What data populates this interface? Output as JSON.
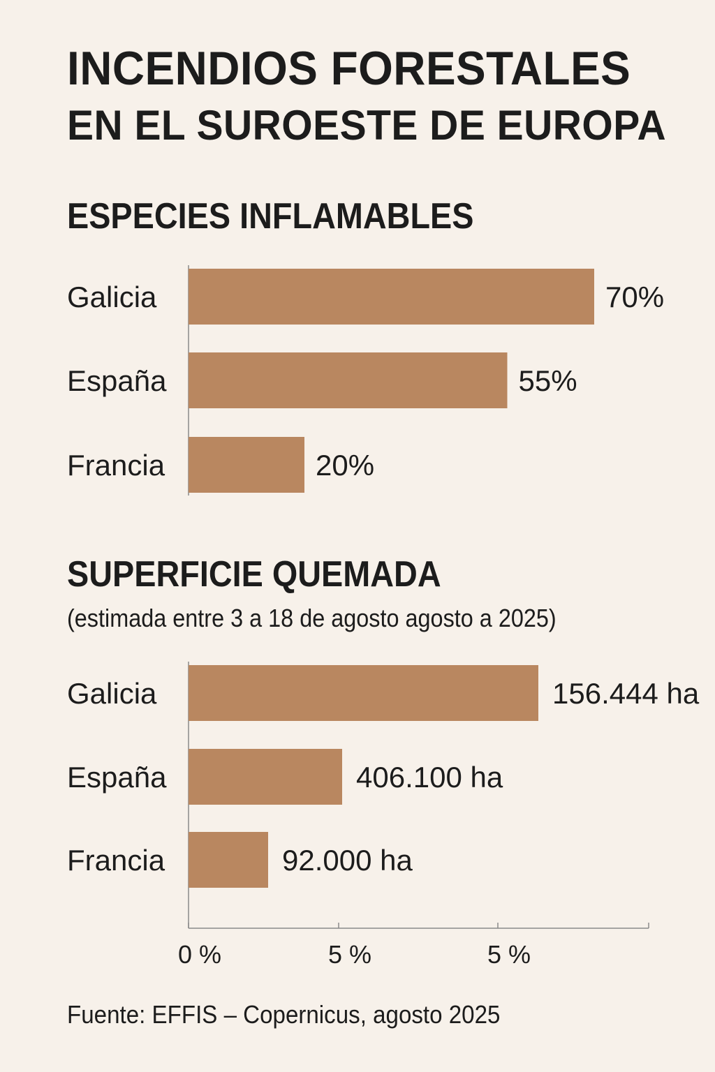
{
  "colors": {
    "background": "#f7f1ea",
    "bar": "#b98760",
    "text": "#1c1c1c",
    "axis": "#8a8a8a"
  },
  "header": {
    "title_line1": "INCENDIOS FORESTALES",
    "title_line2": "EN EL SUROESTE DE EUROPA"
  },
  "footer": {
    "source": "Fuente: EFFIS – Copernicus, agosto 2025"
  },
  "chart_data": [
    {
      "type": "bar",
      "orientation": "horizontal",
      "title": "ESPECIES INFLAMABLES",
      "subtitle": "",
      "categories": [
        "Galicia",
        "España",
        "Francia"
      ],
      "values": [
        70,
        55,
        20
      ],
      "value_labels": [
        "70%",
        "55%",
        "20%"
      ],
      "xlim": [
        0,
        75
      ]
    },
    {
      "type": "bar",
      "orientation": "horizontal",
      "title": "SUPERFICIE QUEMADA",
      "subtitle": "(estimada entre 3 a 18 de agosto agosto a 2025)",
      "categories": [
        "Galicia",
        "España",
        "Francia"
      ],
      "values": [
        156444,
        406100,
        92000
      ],
      "value_labels": [
        "156.444 ha",
        "406.100 ha",
        "92.000 ha"
      ],
      "x_axis": {
        "tick_labels": [
          "0 %",
          "5 %",
          "5 %"
        ]
      }
    }
  ]
}
